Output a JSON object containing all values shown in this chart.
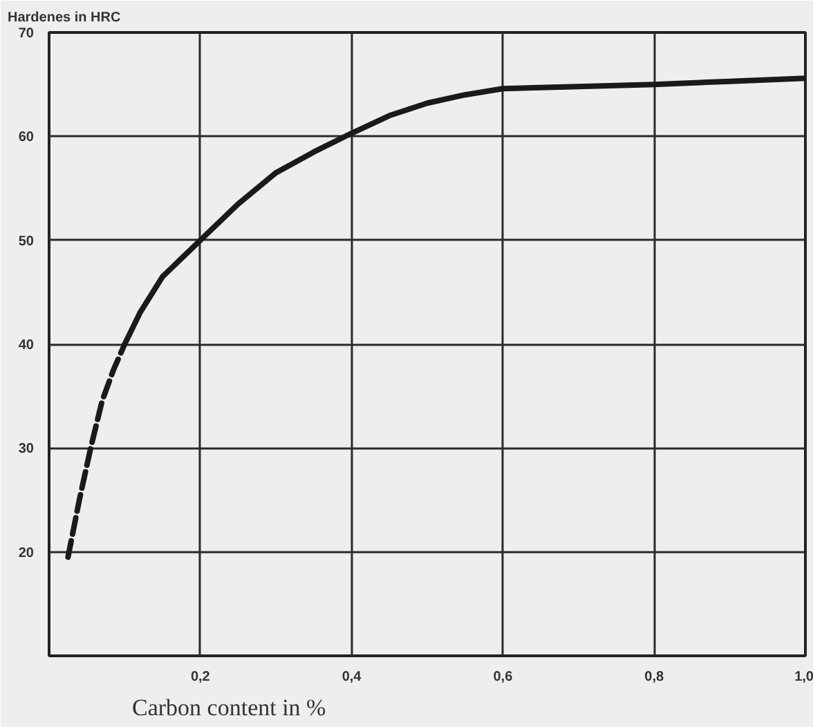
{
  "chart_data": {
    "type": "line",
    "ylabel": "Hardenes in HRC",
    "xlabel": "Carbon content in %",
    "xlim": [
      0,
      1.0
    ],
    "ylim": [
      10,
      70
    ],
    "xticks": [
      {
        "value": 0.2,
        "label": "0,2"
      },
      {
        "value": 0.4,
        "label": "0,4"
      },
      {
        "value": 0.6,
        "label": "0,6"
      },
      {
        "value": 0.8,
        "label": "0,8"
      },
      {
        "value": 1.0,
        "label": "1,0"
      }
    ],
    "yticks": [
      20,
      30,
      40,
      50,
      60,
      70
    ],
    "grid": true,
    "marker": "none",
    "series": [
      {
        "color": "#1a1a1a",
        "line_style": "dashed",
        "x": [
          0.025,
          0.04,
          0.055,
          0.07,
          0.085,
          0.1
        ],
        "values": [
          19.5,
          25,
          30,
          34.5,
          37.5,
          40
        ]
      },
      {
        "color": "#1a1a1a",
        "line_style": "solid",
        "x": [
          0.1,
          0.12,
          0.15,
          0.2,
          0.25,
          0.3,
          0.35,
          0.4,
          0.45,
          0.5,
          0.55,
          0.6,
          0.7,
          0.8,
          0.9,
          1.0
        ],
        "values": [
          40,
          43,
          46.5,
          50,
          53.5,
          56.5,
          58.5,
          60.3,
          62,
          63.2,
          64,
          64.6,
          64.8,
          65,
          65.3,
          65.6
        ]
      }
    ]
  }
}
